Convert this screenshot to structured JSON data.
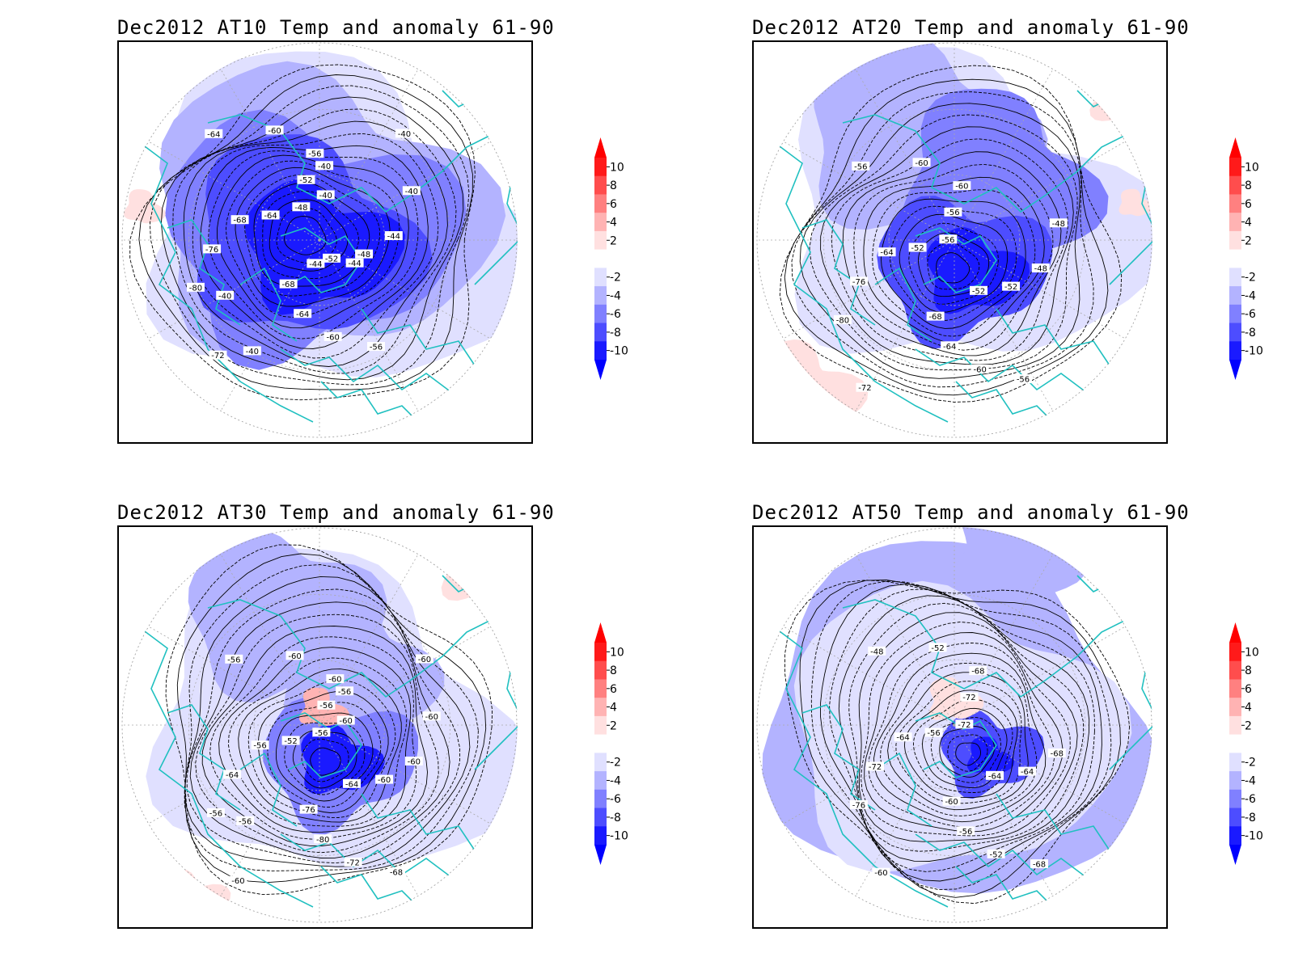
{
  "panels": [
    {
      "title": "Dec2012 AT10 Temp and anomaly 61-90",
      "contour_labels": [
        "-48",
        "-52",
        "-56",
        "-60",
        "-64",
        "-64",
        "-68",
        "-76",
        "-80",
        "-72",
        "-68",
        "-64",
        "-60",
        "-56",
        "-52",
        "-48",
        "-44",
        "-40",
        "-40",
        "-40",
        "-40",
        "-40",
        "-40",
        "-44",
        "-44"
      ]
    },
    {
      "title": "Dec2012 AT20 Temp and anomaly 61-90",
      "contour_labels": [
        "-56",
        "-56",
        "-60",
        "-60",
        "-56",
        "-52",
        "-64",
        "-76",
        "-80",
        "-72",
        "-68",
        "-64",
        "-60",
        "-56",
        "-52",
        "-52",
        "-48",
        "-48"
      ]
    },
    {
      "title": "Dec2012 AT30 Temp and anomaly 61-90",
      "contour_labels": [
        "-56",
        "-56",
        "-60",
        "-60",
        "-56",
        "-52",
        "-56",
        "-64",
        "-56",
        "-60",
        "-76",
        "-80",
        "-72",
        "-68",
        "-64",
        "-60",
        "-60",
        "-60",
        "-60",
        "-60",
        "-56",
        "-56"
      ]
    },
    {
      "title": "Dec2012 AT50 Temp and anomaly 61-90",
      "contour_labels": [
        "-72",
        "-72",
        "-68",
        "-52",
        "-48",
        "-56",
        "-64",
        "-72",
        "-76",
        "-60",
        "-60",
        "-56",
        "-52",
        "-68",
        "-64",
        "-64",
        "-68"
      ]
    }
  ],
  "colorbar": {
    "tick_labels": [
      "10",
      "8",
      "6",
      "4",
      "2",
      "-2",
      "-4",
      "-6",
      "-8",
      "-10"
    ],
    "colors": [
      "#ff1a1a",
      "#ff4d4d",
      "#ff8080",
      "#ffb3b3",
      "#ffe0e0",
      "#ffffff",
      "#e0e0ff",
      "#b3b3ff",
      "#8080ff",
      "#4d4dff",
      "#1a1aff"
    ],
    "over_color": "#ff0000",
    "under_color": "#0000ff"
  },
  "colors": {
    "coastline": "#20c0c0",
    "contour": "#000000",
    "grid": "#aaaaaa"
  }
}
